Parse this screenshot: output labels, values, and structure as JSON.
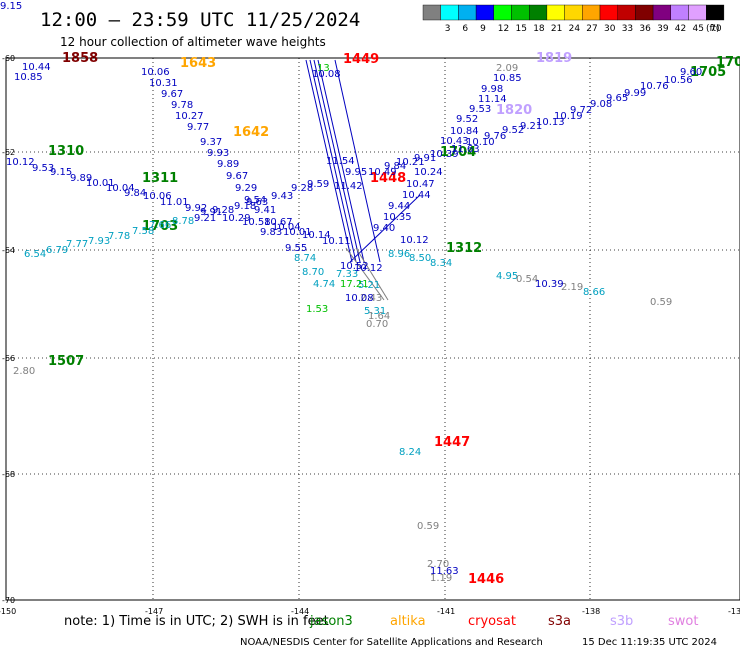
{
  "header": {
    "title": "12:00 — 23:59 UTC 11/25/2024",
    "subtitle": "12 hour collection of altimeter wave heights"
  },
  "colorbar": {
    "unit": "(ft)",
    "bins": [
      {
        "label": "",
        "color": "#808080"
      },
      {
        "label": "3",
        "color": "#00ffff"
      },
      {
        "label": "6",
        "color": "#00b0f0"
      },
      {
        "label": "9",
        "color": "#0000ff"
      },
      {
        "label": "12",
        "color": "#00ff00"
      },
      {
        "label": "15",
        "color": "#00c000"
      },
      {
        "label": "18",
        "color": "#008000"
      },
      {
        "label": "21",
        "color": "#ffff00"
      },
      {
        "label": "24",
        "color": "#ffd700"
      },
      {
        "label": "27",
        "color": "#ffa500"
      },
      {
        "label": "30",
        "color": "#ff0000"
      },
      {
        "label": "33",
        "color": "#c00000"
      },
      {
        "label": "36",
        "color": "#800000"
      },
      {
        "label": "39",
        "color": "#800080"
      },
      {
        "label": "42",
        "color": "#c080ff"
      },
      {
        "label": "45",
        "color": "#e0a0ff"
      },
      {
        "label": "70",
        "color": "#000000"
      }
    ]
  },
  "axes": {
    "lat_labels": [
      "-60",
      "-62",
      "-64",
      "-66",
      "-68",
      "-70"
    ],
    "lon_labels": [
      "-150",
      "-147",
      "-144",
      "-141",
      "-138",
      "-13"
    ]
  },
  "tracks": [
    {
      "label": "1858",
      "color": "#800000"
    },
    {
      "label": "1643",
      "color": "#ffa500"
    },
    {
      "label": "1642",
      "color": "#ffa500"
    },
    {
      "label": "1449",
      "color": "#ff0000"
    },
    {
      "label": "1448",
      "color": "#ff0000"
    },
    {
      "label": "1447",
      "color": "#ff0000"
    },
    {
      "label": "1446",
      "color": "#ff0000"
    },
    {
      "label": "1819",
      "color": "#c0a0ff"
    },
    {
      "label": "1820",
      "color": "#c0a0ff"
    },
    {
      "label": "1705",
      "color": "#008000"
    },
    {
      "label": "170",
      "color": "#008000"
    },
    {
      "label": "1704",
      "color": "#008000"
    },
    {
      "label": "1310",
      "color": "#008000"
    },
    {
      "label": "1311",
      "color": "#008000"
    },
    {
      "label": "1703",
      "color": "#008000"
    },
    {
      "label": "1312",
      "color": "#008000"
    },
    {
      "label": "1507",
      "color": "#008000"
    }
  ],
  "values": [
    {
      "t": "10.44",
      "c": "#0000c0"
    },
    {
      "t": "10.85",
      "c": "#0000c0"
    },
    {
      "t": "10.06",
      "c": "#0000c0"
    },
    {
      "t": "10.31",
      "c": "#0000c0"
    },
    {
      "t": "9.67",
      "c": "#0000c0"
    },
    {
      "t": "9.78",
      "c": "#0000c0"
    },
    {
      "t": "10.27",
      "c": "#0000c0"
    },
    {
      "t": "9.77",
      "c": "#0000c0"
    },
    {
      "t": "9.37",
      "c": "#0000c0"
    },
    {
      "t": "9.93",
      "c": "#0000c0"
    },
    {
      "t": "9.89",
      "c": "#0000c0"
    },
    {
      "t": "9.67",
      "c": "#0000c0"
    },
    {
      "t": "9.29",
      "c": "#0000c0"
    },
    {
      "t": "9.54",
      "c": "#0000c0"
    },
    {
      "t": "9.43",
      "c": "#0000c0"
    },
    {
      "t": "9.28",
      "c": "#0000c0"
    },
    {
      "t": "9.59",
      "c": "#0000c0"
    },
    {
      "t": "10.12",
      "c": "#0000c0"
    },
    {
      "t": "9.53",
      "c": "#0000c0"
    },
    {
      "t": "9.15",
      "c": "#0000c0"
    },
    {
      "t": "9.89",
      "c": "#0000c0"
    },
    {
      "t": "10.01",
      "c": "#0000c0"
    },
    {
      "t": "10.04",
      "c": "#0000c0"
    },
    {
      "t": "9.84",
      "c": "#0000c0"
    },
    {
      "t": "10.06",
      "c": "#0000c0"
    },
    {
      "t": "11.01",
      "c": "#0000c0"
    },
    {
      "t": "9.92",
      "c": "#0000c0"
    },
    {
      "t": "9.91",
      "c": "#0000c0"
    },
    {
      "t": "9.28",
      "c": "#0000c0"
    },
    {
      "t": "9.21",
      "c": "#0000c0"
    },
    {
      "t": "10.29",
      "c": "#0000c0"
    },
    {
      "t": "9.18",
      "c": "#0000c0"
    },
    {
      "t": "9.63",
      "c": "#0000c0"
    },
    {
      "t": "9.41",
      "c": "#0000c0"
    },
    {
      "t": "10.58",
      "c": "#0000c0"
    },
    {
      "t": "10.67",
      "c": "#0000c0"
    },
    {
      "t": "10.04",
      "c": "#0000c0"
    },
    {
      "t": "10.01",
      "c": "#0000c0"
    },
    {
      "t": "9.83",
      "c": "#0000c0"
    },
    {
      "t": "10.14",
      "c": "#0000c0"
    },
    {
      "t": "9.55",
      "c": "#0000c0"
    },
    {
      "t": "10.11",
      "c": "#0000c0"
    },
    {
      "t": "6.54",
      "c": "#00a0c0"
    },
    {
      "t": "6.79",
      "c": "#00a0c0"
    },
    {
      "t": "7.77",
      "c": "#00a0c0"
    },
    {
      "t": "7.93",
      "c": "#00a0c0"
    },
    {
      "t": "7.78",
      "c": "#00a0c0"
    },
    {
      "t": "7.58",
      "c": "#00a0c0"
    },
    {
      "t": "7.66",
      "c": "#00a0c0"
    },
    {
      "t": "8.78",
      "c": "#00a0c0"
    },
    {
      "t": "8.74",
      "c": "#00a0c0"
    },
    {
      "t": "8.70",
      "c": "#00a0c0"
    },
    {
      "t": "7.33",
      "c": "#00a0c0"
    },
    {
      "t": "5.21",
      "c": "#00a0c0"
    },
    {
      "t": "5.31",
      "c": "#00a0c0"
    },
    {
      "t": "8.96",
      "c": "#00a0c0"
    },
    {
      "t": "8.50",
      "c": "#00a0c0"
    },
    {
      "t": "8.34",
      "c": "#00a0c0"
    },
    {
      "t": "4.95",
      "c": "#00a0c0"
    },
    {
      "t": "8.66",
      "c": "#00a0c0"
    },
    {
      "t": "8.24",
      "c": "#00a0c0"
    },
    {
      "t": "4.74",
      "c": "#00a0c0"
    },
    {
      "t": "17.21",
      "c": "#00c000"
    },
    {
      "t": "13",
      "c": "#00c000"
    },
    {
      "t": "1.53",
      "c": "#00c000"
    },
    {
      "t": "2.43",
      "c": "#808080"
    },
    {
      "t": "1.64",
      "c": "#808080"
    },
    {
      "t": "0.70",
      "c": "#808080"
    },
    {
      "t": "0.54",
      "c": "#808080"
    },
    {
      "t": "2.19",
      "c": "#808080"
    },
    {
      "t": "0.59",
      "c": "#808080"
    },
    {
      "t": "2.80",
      "c": "#808080"
    },
    {
      "t": "0.59",
      "c": "#808080"
    },
    {
      "t": "2.70",
      "c": "#808080"
    },
    {
      "t": "1.19",
      "c": "#808080"
    },
    {
      "t": "2.09",
      "c": "#808080"
    },
    {
      "t": "10.85",
      "c": "#0000c0"
    },
    {
      "t": "9.98",
      "c": "#0000c0"
    },
    {
      "t": "11.14",
      "c": "#0000c0"
    },
    {
      "t": "9.53",
      "c": "#0000c0"
    },
    {
      "t": "9.52",
      "c": "#0000c0"
    },
    {
      "t": "10.84",
      "c": "#0000c0"
    },
    {
      "t": "10.43",
      "c": "#0000c0"
    },
    {
      "t": "11.63",
      "c": "#0000c0"
    },
    {
      "t": "10.39",
      "c": "#0000c0"
    },
    {
      "t": "10.24",
      "c": "#0000c0"
    },
    {
      "t": "10.47",
      "c": "#0000c0"
    },
    {
      "t": "10.44",
      "c": "#0000c0"
    },
    {
      "t": "9.44",
      "c": "#0000c0"
    },
    {
      "t": "10.35",
      "c": "#0000c0"
    },
    {
      "t": "9.40",
      "c": "#0000c0"
    },
    {
      "t": "9.84",
      "c": "#0000c0"
    },
    {
      "t": "10.49",
      "c": "#0000c0"
    },
    {
      "t": "9.95",
      "c": "#0000c0"
    },
    {
      "t": "10.12",
      "c": "#0000c0"
    },
    {
      "t": "10.39",
      "c": "#0000c0"
    },
    {
      "t": "11.63",
      "c": "#0000c0"
    },
    {
      "t": "9.60",
      "c": "#0000c0"
    },
    {
      "t": "10.56",
      "c": "#0000c0"
    },
    {
      "t": "10.76",
      "c": "#0000c0"
    },
    {
      "t": "9.99",
      "c": "#0000c0"
    },
    {
      "t": "9.65",
      "c": "#0000c0"
    },
    {
      "t": "9.08",
      "c": "#0000c0"
    },
    {
      "t": "9.72",
      "c": "#0000c0"
    },
    {
      "t": "10.19",
      "c": "#0000c0"
    },
    {
      "t": "10.13",
      "c": "#0000c0"
    },
    {
      "t": "9.21",
      "c": "#0000c0"
    },
    {
      "t": "9.52",
      "c": "#0000c0"
    },
    {
      "t": "9.76",
      "c": "#0000c0"
    },
    {
      "t": "10.10",
      "c": "#0000c0"
    },
    {
      "t": "9.91",
      "c": "#0000c0"
    },
    {
      "t": "10.21",
      "c": "#0000c0"
    },
    {
      "t": "10.08",
      "c": "#0000c0"
    },
    {
      "t": "11.54",
      "c": "#0000c0"
    },
    {
      "t": "11.42",
      "c": "#0000c0"
    },
    {
      "t": "10.52",
      "c": "#0000c0"
    },
    {
      "t": "10.12",
      "c": "#0000c0"
    },
    {
      "t": "10.08",
      "c": "#0000c0"
    },
    {
      "t": "9.15",
      "c": "#0000c0"
    }
  ],
  "legend": {
    "note": "note:  1) Time is in UTC;  2) SWH is in feet",
    "satellites": [
      {
        "name": "jason3",
        "color": "#008000"
      },
      {
        "name": "altika",
        "color": "#ffa500"
      },
      {
        "name": "cryosat",
        "color": "#ff0000"
      },
      {
        "name": "s3a",
        "color": "#800000"
      },
      {
        "name": "s3b",
        "color": "#c0a0ff"
      },
      {
        "name": "swot",
        "color": "#e080e0"
      }
    ]
  },
  "footer": {
    "credit": "NOAA/NESDIS Center for Satellite Applications and Research",
    "timestamp": "15 Dec 11:19:35 UTC 2024"
  }
}
